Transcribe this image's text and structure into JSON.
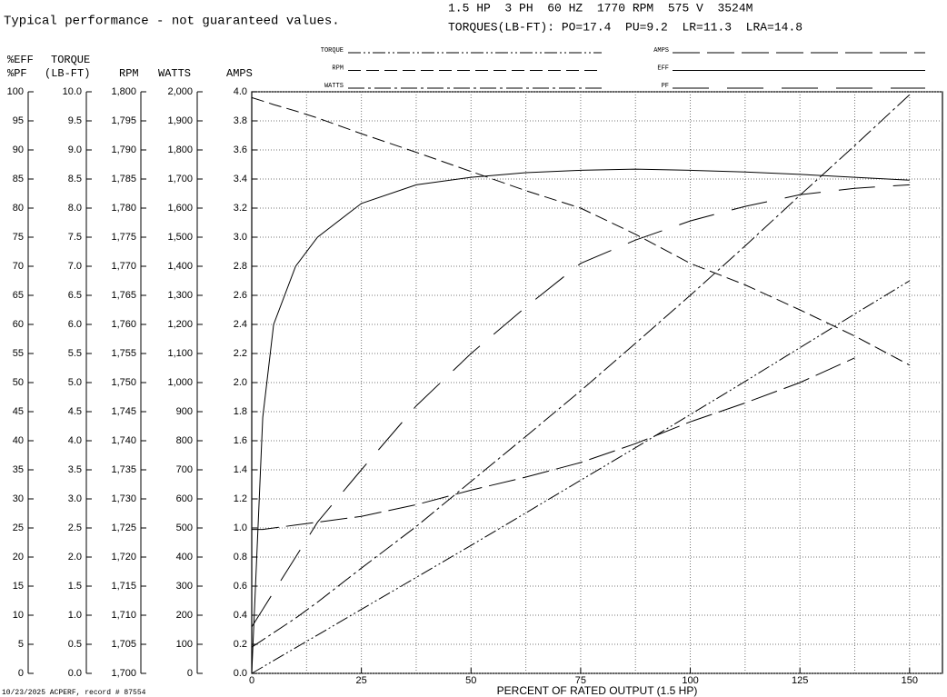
{
  "chart_data": {
    "type": "line",
    "note": "Typical performance - not guaranteed values.",
    "header": [
      "1.5 HP  3 PH  60 HZ  1770 RPM  575 V  3524M",
      "TORQUES(LB-FT): PO=17.4  PU=9.2  LR=11.3  LRA=14.8"
    ],
    "footer": "10/23/2025 ACPERF, record # 87554",
    "xlabel": "PERCENT OF RATED OUTPUT (1.5 HP)",
    "x": [
      0,
      2.5,
      5,
      10,
      15,
      25,
      37.5,
      50,
      62.5,
      75,
      87.5,
      100,
      112.5,
      125,
      137.5,
      150
    ],
    "xlim": [
      0,
      157.5
    ],
    "xticks": [
      0,
      25,
      50,
      75,
      100,
      125,
      150
    ],
    "xgrid": [
      12.5,
      25,
      37.5,
      50,
      62.5,
      75,
      87.5,
      100,
      112.5,
      125,
      137.5,
      150
    ],
    "grid": true,
    "y_axes": [
      {
        "labels": [
          "%EFF",
          "%PF"
        ],
        "ylim": [
          0,
          100
        ],
        "yticks": [
          0,
          5,
          10,
          15,
          20,
          25,
          30,
          35,
          40,
          45,
          50,
          55,
          60,
          65,
          70,
          75,
          80,
          85,
          90,
          95,
          100
        ]
      },
      {
        "labels": [
          "TORQUE",
          "(LB-FT)"
        ],
        "ylim": [
          0,
          10
        ],
        "yticks": [
          {
            "value": 0,
            "label": "0.0"
          },
          0.5,
          {
            "value": 1,
            "label": "1.0"
          },
          1.5,
          {
            "value": 2,
            "label": "2.0"
          },
          2.5,
          {
            "value": 3,
            "label": "3.0"
          },
          3.5,
          {
            "value": 4,
            "label": "4.0"
          },
          4.5,
          {
            "value": 5,
            "label": "5.0"
          },
          5.5,
          {
            "value": 6,
            "label": "6.0"
          },
          6.5,
          {
            "value": 7,
            "label": "7.0"
          },
          7.5,
          {
            "value": 8,
            "label": "8.0"
          },
          8.5,
          {
            "value": 9,
            "label": "9.0"
          },
          9.5,
          {
            "value": 10,
            "label": "10.0"
          }
        ]
      },
      {
        "labels": [
          "RPM"
        ],
        "ylim": [
          1700,
          1800
        ],
        "yticks": [
          {
            "value": 1700,
            "label": "1,700"
          },
          {
            "value": 1705,
            "label": "1,705"
          },
          {
            "value": 1710,
            "label": "1,710"
          },
          {
            "value": 1715,
            "label": "1,715"
          },
          {
            "value": 1720,
            "label": "1,720"
          },
          {
            "value": 1725,
            "label": "1,725"
          },
          {
            "value": 1730,
            "label": "1,730"
          },
          {
            "value": 1735,
            "label": "1,735"
          },
          {
            "value": 1740,
            "label": "1,740"
          },
          {
            "value": 1745,
            "label": "1,745"
          },
          {
            "value": 1750,
            "label": "1,750"
          },
          {
            "value": 1755,
            "label": "1,755"
          },
          {
            "value": 1760,
            "label": "1,760"
          },
          {
            "value": 1765,
            "label": "1,765"
          },
          {
            "value": 1770,
            "label": "1,770"
          },
          {
            "value": 1775,
            "label": "1,775"
          },
          {
            "value": 1780,
            "label": "1,780"
          },
          {
            "value": 1785,
            "label": "1,785"
          },
          {
            "value": 1790,
            "label": "1,790"
          },
          {
            "value": 1795,
            "label": "1,795"
          },
          {
            "value": 1800,
            "label": "1,800"
          }
        ]
      },
      {
        "labels": [
          "WATTS"
        ],
        "ylim": [
          0,
          2000
        ],
        "yticks": [
          0,
          100,
          200,
          300,
          400,
          500,
          600,
          700,
          800,
          900,
          {
            "value": 1000,
            "label": "1,000"
          },
          {
            "value": 1100,
            "label": "1,100"
          },
          {
            "value": 1200,
            "label": "1,200"
          },
          {
            "value": 1300,
            "label": "1,300"
          },
          {
            "value": 1400,
            "label": "1,400"
          },
          {
            "value": 1500,
            "label": "1,500"
          },
          {
            "value": 1600,
            "label": "1,600"
          },
          {
            "value": 1700,
            "label": "1,700"
          },
          {
            "value": 1800,
            "label": "1,800"
          },
          {
            "value": 1900,
            "label": "1,900"
          },
          {
            "value": 2000,
            "label": "2,000"
          }
        ]
      },
      {
        "labels": [
          "AMPS"
        ],
        "ylim": [
          0,
          4
        ],
        "yticks": [
          {
            "value": 0,
            "label": "0.0"
          },
          0.2,
          0.4,
          0.6,
          0.8,
          {
            "value": 1,
            "label": "1.0"
          },
          1.2,
          1.4,
          1.6,
          1.8,
          {
            "value": 2,
            "label": "2.0"
          },
          2.2,
          2.4,
          2.6,
          2.8,
          {
            "value": 3,
            "label": "3.0"
          },
          3.2,
          3.4,
          3.6,
          3.8,
          {
            "value": 4,
            "label": "4.0"
          }
        ]
      }
    ],
    "series": [
      {
        "name": "TORQUE",
        "axis": 1,
        "color": "#000000",
        "dash": "14 3 2 3 2 3",
        "values": [
          0,
          0.11,
          0.22,
          0.44,
          0.66,
          1.1,
          1.65,
          2.2,
          2.76,
          3.32,
          3.88,
          4.45,
          5.02,
          5.6,
          6.18,
          6.75
        ]
      },
      {
        "name": "RPM",
        "axis": 2,
        "color": "#000000",
        "dash": "14 6",
        "values": [
          1799,
          1798.4,
          1797.8,
          1796.7,
          1795.5,
          1792.8,
          1789.6,
          1786.3,
          1783,
          1780,
          1775.5,
          1770.5,
          1766.8,
          1762.5,
          1758,
          1753
        ]
      },
      {
        "name": "WATTS",
        "axis": 3,
        "color": "#000000",
        "dash": "18 4 3 4",
        "values": [
          90,
          115,
          140,
          190,
          245,
          362,
          505,
          660,
          815,
          972,
          1135,
          1300,
          1470,
          1644,
          1815,
          1990
        ]
      },
      {
        "name": "AMPS",
        "axis": 4,
        "color": "#000000",
        "dash": "30 8",
        "values": [
          0.99,
          0.99,
          1.0,
          1.02,
          1.04,
          1.08,
          1.16,
          1.26,
          1.35,
          1.45,
          1.58,
          1.73,
          1.86,
          2.0,
          2.17,
          null
        ]
      },
      {
        "name": "EFF",
        "axis": 0,
        "color": "#000000",
        "dash": "none",
        "values": [
          0,
          44,
          60,
          70,
          75,
          80.8,
          84,
          85.3,
          86.1,
          86.5,
          86.7,
          86.5,
          86.2,
          85.8,
          85.3,
          84.8
        ]
      },
      {
        "name": "PF",
        "axis": 0,
        "color": "#000000",
        "dash": "40 20",
        "values": [
          8,
          11,
          14,
          20,
          26,
          35,
          46,
          55,
          63,
          70.5,
          74.5,
          77.8,
          80.3,
          82.3,
          83.4,
          84
        ]
      }
    ]
  }
}
